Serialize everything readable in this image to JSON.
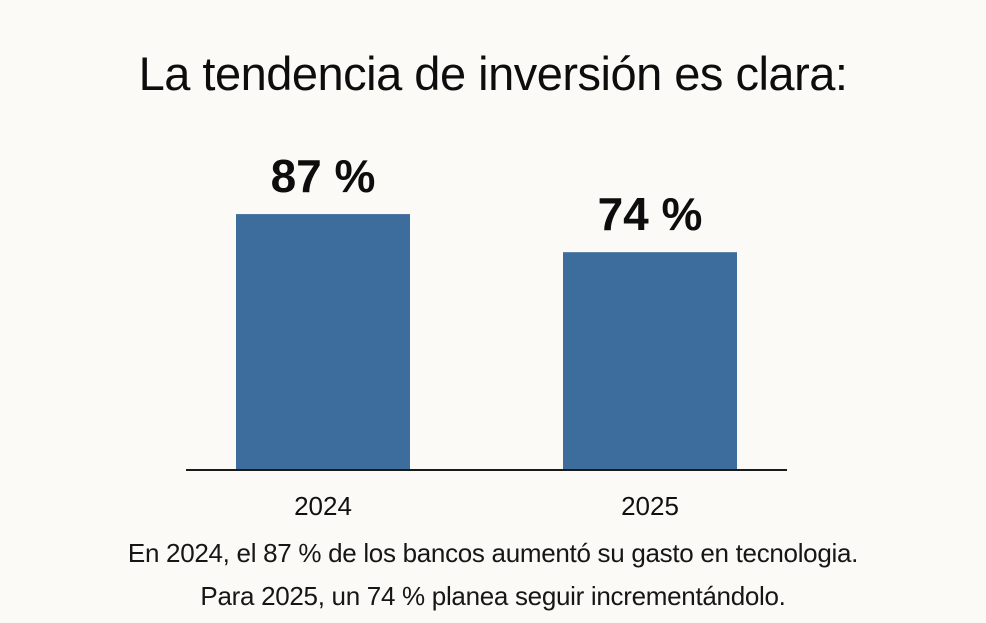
{
  "title": "La tendencia de inversión es clara:",
  "chart_data": {
    "type": "bar",
    "title": "La tendencia de inversión es clara:",
    "categories": [
      "2024",
      "2025"
    ],
    "values": [
      87,
      74
    ],
    "value_labels": [
      "87 %",
      "74 %"
    ],
    "unit": "%",
    "xlabel": "",
    "ylabel": "",
    "ylim": [
      0,
      100
    ],
    "grid": false,
    "legend": "none",
    "bar_color": "#3d6d9c"
  },
  "caption": {
    "line1": "En 2024, el 87 % de los bancos aumentó su gasto en tecnologia.",
    "line2": "Para 2025, un 74 % planea seguir incrementándolo."
  }
}
